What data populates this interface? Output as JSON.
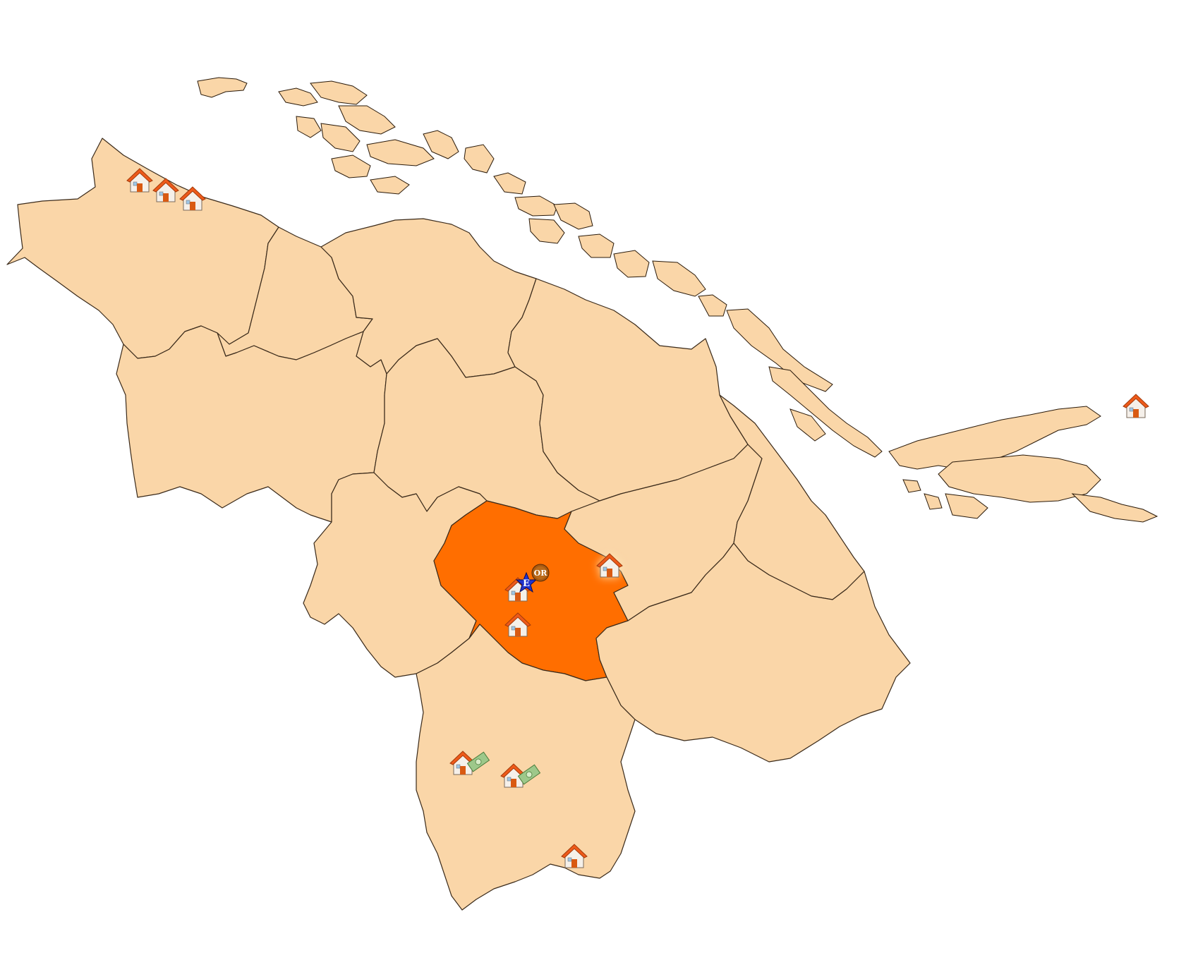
{
  "map": {
    "colors": {
      "region_fill": "#FAD6A8",
      "region_selected_fill": "#FF6E00",
      "border": "#3a2a1a",
      "background": "#FFFFFF"
    },
    "regions": [
      {
        "id": "region-northwest",
        "selected": false
      },
      {
        "id": "region-north-a",
        "selected": false
      },
      {
        "id": "region-north-b",
        "selected": false
      },
      {
        "id": "region-west",
        "selected": false
      },
      {
        "id": "region-center-north",
        "selected": false
      },
      {
        "id": "region-northeast",
        "selected": false
      },
      {
        "id": "region-center-west",
        "selected": false
      },
      {
        "id": "region-selected",
        "selected": true
      },
      {
        "id": "region-east-a",
        "selected": false
      },
      {
        "id": "region-east-b",
        "selected": false
      },
      {
        "id": "region-southeast",
        "selected": false
      },
      {
        "id": "region-south",
        "selected": false
      }
    ],
    "markers": [
      {
        "icon": "house-icon",
        "badge": null
      },
      {
        "icon": "house-icon",
        "badge": null
      },
      {
        "icon": "house-icon",
        "badge": null
      },
      {
        "icon": "house-icon",
        "badge": null
      },
      {
        "icon": "house-icon",
        "badge": "star-badge",
        "badge_text": "E",
        "extra_badge": "circle-badge",
        "extra_badge_text": "OR"
      },
      {
        "icon": "house-icon",
        "badge": null,
        "highlight": true
      },
      {
        "icon": "house-icon",
        "badge": null
      },
      {
        "icon": "house-icon",
        "badge": "money-icon"
      },
      {
        "icon": "house-icon",
        "badge": "money-icon"
      },
      {
        "icon": "house-icon",
        "badge": null
      }
    ]
  }
}
